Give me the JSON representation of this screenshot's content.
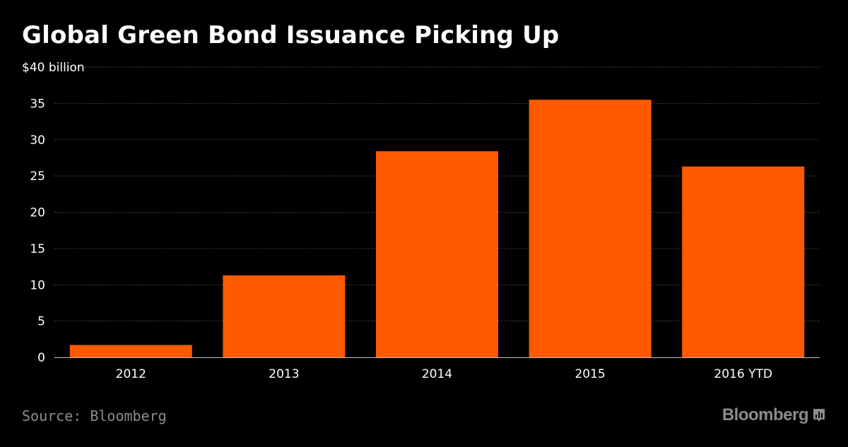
{
  "header": {
    "title": "Global Green Bond Issuance Picking Up"
  },
  "footer": {
    "source": "Source: Bloomberg",
    "brand": "Bloomberg",
    "brand_icon": "bloomberg-chart-icon"
  },
  "colors": {
    "background": "#000000",
    "bar": "#ff5a00",
    "grid": "#5a5a5a",
    "text": "#ffffff",
    "muted": "#8c8c8c"
  },
  "chart_data": {
    "type": "bar",
    "title": "Global Green Bond Issuance Picking Up",
    "xlabel": "",
    "ylabel": "",
    "unit_label": "$40 billion",
    "categories": [
      "2012",
      "2013",
      "2014",
      "2015",
      "2016 YTD"
    ],
    "values": [
      1.7,
      11.3,
      28.4,
      35.5,
      26.3
    ],
    "ylim": [
      0,
      40
    ],
    "yticks": [
      0,
      5,
      10,
      15,
      20,
      25,
      30,
      35
    ],
    "grid": true,
    "legend": "none"
  }
}
